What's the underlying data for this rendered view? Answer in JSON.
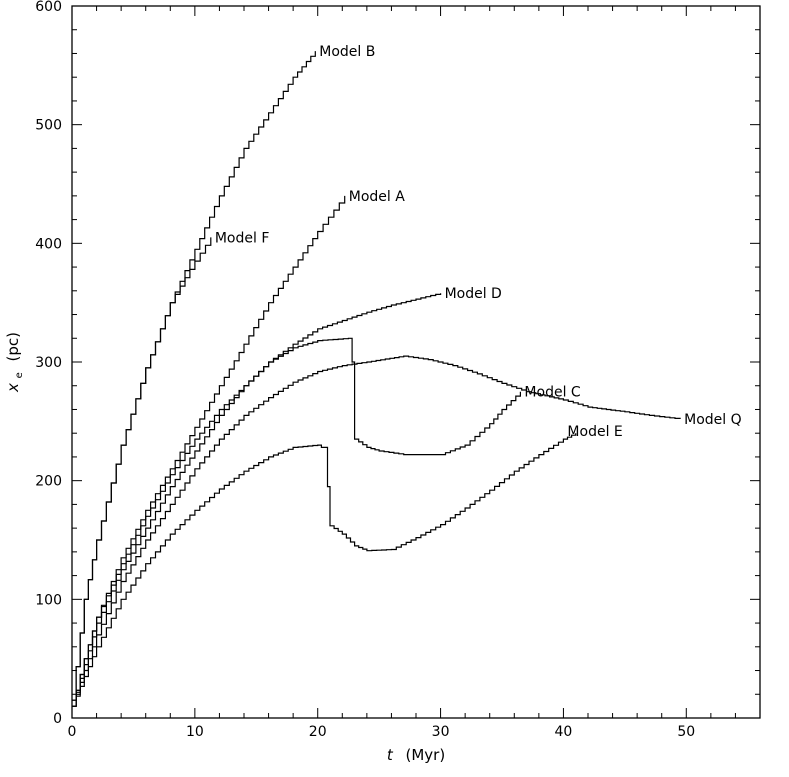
{
  "chart_data": {
    "type": "line",
    "title": "",
    "xlabel_symbol": "t",
    "xlabel_unit": "(Myr)",
    "ylabel_symbol": "x",
    "ylabel_sub": "e",
    "ylabel_unit": "(pc)",
    "xlim": [
      0,
      56
    ],
    "ylim": [
      0,
      600
    ],
    "xticks": [
      0,
      10,
      20,
      30,
      40,
      50
    ],
    "yticks": [
      0,
      100,
      200,
      300,
      400,
      500,
      600
    ],
    "grid": false,
    "legend": "none",
    "series": [
      {
        "name": "Model B",
        "label_at": [
          19.8,
          562
        ],
        "points": [
          [
            0,
            15
          ],
          [
            1,
            100
          ],
          [
            2,
            150
          ],
          [
            4,
            230
          ],
          [
            6,
            295
          ],
          [
            8,
            350
          ],
          [
            10,
            395
          ],
          [
            12,
            440
          ],
          [
            14,
            480
          ],
          [
            16,
            510
          ],
          [
            18,
            540
          ],
          [
            19.8,
            562
          ]
        ]
      },
      {
        "name": "Model F",
        "label_at": [
          11.3,
          405
        ],
        "points": [
          [
            0,
            15
          ],
          [
            1,
            100
          ],
          [
            2,
            150
          ],
          [
            4,
            230
          ],
          [
            6,
            295
          ],
          [
            8,
            350
          ],
          [
            10,
            385
          ],
          [
            11.3,
            405
          ]
        ]
      },
      {
        "name": "Model A",
        "label_at": [
          22.2,
          440
        ],
        "points": [
          [
            0,
            10
          ],
          [
            1,
            50
          ],
          [
            2,
            85
          ],
          [
            4,
            135
          ],
          [
            6,
            175
          ],
          [
            8,
            210
          ],
          [
            10,
            245
          ],
          [
            12,
            280
          ],
          [
            14,
            315
          ],
          [
            16,
            350
          ],
          [
            18,
            380
          ],
          [
            20,
            410
          ],
          [
            22.2,
            440
          ]
        ]
      },
      {
        "name": "Model D",
        "label_at": [
          30,
          358
        ],
        "points": [
          [
            0,
            10
          ],
          [
            1,
            50
          ],
          [
            2,
            85
          ],
          [
            4,
            130
          ],
          [
            6,
            170
          ],
          [
            8,
            205
          ],
          [
            10,
            235
          ],
          [
            12,
            260
          ],
          [
            14,
            280
          ],
          [
            16,
            300
          ],
          [
            18,
            315
          ],
          [
            20,
            328
          ],
          [
            22,
            335
          ],
          [
            24,
            342
          ],
          [
            26,
            348
          ],
          [
            28,
            353
          ],
          [
            30,
            358
          ]
        ]
      },
      {
        "name": "Model C",
        "label_at": [
          36.5,
          275
        ],
        "points": [
          [
            0,
            10
          ],
          [
            1,
            45
          ],
          [
            2,
            80
          ],
          [
            4,
            125
          ],
          [
            6,
            160
          ],
          [
            8,
            195
          ],
          [
            10,
            225
          ],
          [
            12,
            255
          ],
          [
            14,
            280
          ],
          [
            16,
            300
          ],
          [
            18,
            312
          ],
          [
            20,
            318
          ],
          [
            22.5,
            320
          ],
          [
            22.8,
            300
          ],
          [
            23,
            235
          ],
          [
            24,
            228
          ],
          [
            25,
            225
          ],
          [
            27,
            222
          ],
          [
            30,
            222
          ],
          [
            32,
            230
          ],
          [
            34,
            248
          ],
          [
            35,
            260
          ],
          [
            36.5,
            275
          ]
        ]
      },
      {
        "name": "Model Q",
        "label_at": [
          49.5,
          252
        ],
        "points": [
          [
            0,
            10
          ],
          [
            1,
            40
          ],
          [
            2,
            70
          ],
          [
            4,
            115
          ],
          [
            6,
            150
          ],
          [
            8,
            180
          ],
          [
            10,
            210
          ],
          [
            12,
            235
          ],
          [
            14,
            255
          ],
          [
            16,
            270
          ],
          [
            18,
            283
          ],
          [
            20,
            292
          ],
          [
            22,
            297
          ],
          [
            24,
            300
          ],
          [
            27,
            305
          ],
          [
            29,
            302
          ],
          [
            31,
            297
          ],
          [
            33,
            290
          ],
          [
            35,
            282
          ],
          [
            37,
            275
          ],
          [
            40,
            268
          ],
          [
            42,
            262
          ],
          [
            45,
            258
          ],
          [
            47,
            255
          ],
          [
            49.5,
            252
          ]
        ]
      },
      {
        "name": "Model E",
        "label_at": [
          40,
          242
        ],
        "points": [
          [
            0,
            10
          ],
          [
            1,
            35
          ],
          [
            2,
            60
          ],
          [
            4,
            100
          ],
          [
            6,
            130
          ],
          [
            8,
            155
          ],
          [
            10,
            175
          ],
          [
            12,
            193
          ],
          [
            14,
            208
          ],
          [
            16,
            220
          ],
          [
            18,
            228
          ],
          [
            20,
            230
          ],
          [
            20.3,
            228
          ],
          [
            20.8,
            195
          ],
          [
            21,
            162
          ],
          [
            22,
            155
          ],
          [
            23,
            145
          ],
          [
            24,
            141
          ],
          [
            26,
            142
          ],
          [
            28,
            152
          ],
          [
            30,
            163
          ],
          [
            32,
            177
          ],
          [
            34,
            192
          ],
          [
            36,
            208
          ],
          [
            38,
            222
          ],
          [
            40,
            235
          ],
          [
            41,
            240
          ]
        ]
      }
    ]
  }
}
